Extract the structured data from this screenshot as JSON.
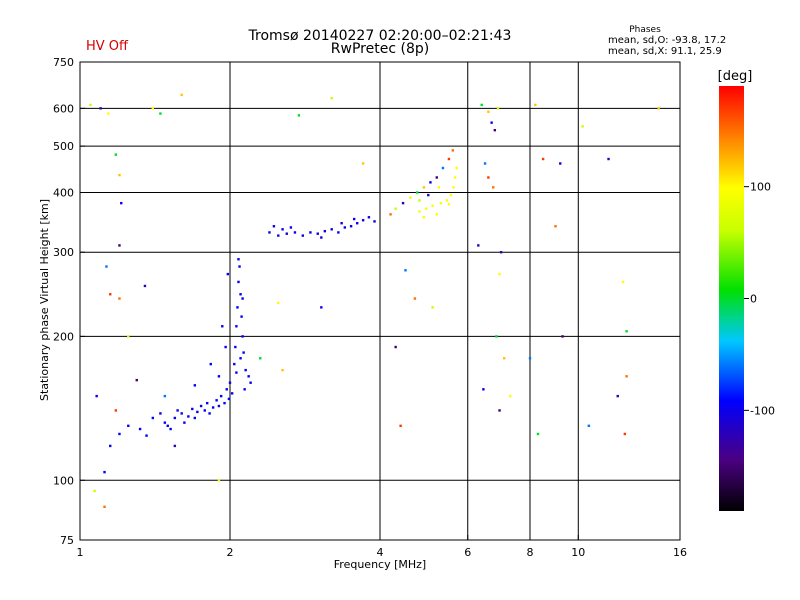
{
  "header": {
    "title_line1": "Tromsø 20140227 02:20:00–02:21:43",
    "title_line2": "RwPretec (8p)",
    "status": "HV Off",
    "phases_title": "Phases",
    "phases_o": "mean, sd,O: -93.8, 17.2",
    "phases_x": "mean, sd,X:  91.1, 25.9",
    "status_color": "#d40000"
  },
  "colorbar": {
    "label": "[deg]",
    "ticks": [
      {
        "value": 100,
        "label": "100"
      },
      {
        "value": 0,
        "label": "0"
      },
      {
        "value": -100,
        "label": "-100"
      }
    ],
    "range": [
      -190,
      190
    ]
  },
  "chart_data": {
    "type": "scatter",
    "title": "Tromsø 20140227 02:20:00–02:21:43",
    "subtitle": "RwPretec (8p)",
    "xlabel": "Frequency [MHz]",
    "ylabel": "Stationary phase Virtual Height [km]",
    "xscale": "log",
    "yscale": "log",
    "xlim": [
      1,
      16
    ],
    "ylim": [
      75,
      750
    ],
    "xticks": [
      {
        "value": 1,
        "label": "1"
      },
      {
        "value": 2,
        "label": "2"
      },
      {
        "value": 4,
        "label": "4"
      },
      {
        "value": 6,
        "label": "6"
      },
      {
        "value": 8,
        "label": "8"
      },
      {
        "value": 10,
        "label": "10"
      },
      {
        "value": 16,
        "label": "16"
      }
    ],
    "yticks": [
      {
        "value": 75,
        "label": "75"
      },
      {
        "value": 100,
        "label": "100"
      },
      {
        "value": 200,
        "label": "200"
      },
      {
        "value": 300,
        "label": "300"
      },
      {
        "value": 400,
        "label": "400"
      },
      {
        "value": 500,
        "label": "500"
      },
      {
        "value": 600,
        "label": "600"
      },
      {
        "value": 750,
        "label": "750"
      }
    ],
    "gridlines_x": [
      2,
      4,
      6,
      8,
      10
    ],
    "gridlines_y": [
      100,
      200,
      300,
      400,
      500,
      600
    ],
    "grid": true,
    "series": [
      {
        "name": "Low-frequency echo trace (blue, phase ~ -100 deg)",
        "phase": -95,
        "points": [
          [
            1.12,
            104
          ],
          [
            1.15,
            118
          ],
          [
            1.2,
            125
          ],
          [
            1.25,
            130
          ],
          [
            1.32,
            128
          ],
          [
            1.36,
            124
          ],
          [
            1.4,
            135
          ],
          [
            1.45,
            138
          ],
          [
            1.48,
            132
          ],
          [
            1.5,
            130
          ],
          [
            1.52,
            128
          ],
          [
            1.55,
            135
          ],
          [
            1.57,
            140
          ],
          [
            1.6,
            138
          ],
          [
            1.62,
            132
          ],
          [
            1.65,
            136
          ],
          [
            1.68,
            141
          ],
          [
            1.7,
            135
          ],
          [
            1.72,
            139
          ],
          [
            1.75,
            143
          ],
          [
            1.78,
            140
          ],
          [
            1.8,
            145
          ],
          [
            1.82,
            138
          ],
          [
            1.85,
            142
          ],
          [
            1.88,
            147
          ],
          [
            1.9,
            143
          ],
          [
            1.92,
            150
          ],
          [
            1.95,
            145
          ],
          [
            1.97,
            155
          ],
          [
            1.99,
            148
          ],
          [
            2.0,
            160
          ],
          [
            2.02,
            152
          ],
          [
            2.04,
            175
          ],
          [
            2.05,
            190
          ],
          [
            2.06,
            210
          ],
          [
            2.07,
            230
          ],
          [
            2.08,
            260
          ],
          [
            2.09,
            280
          ],
          [
            2.1,
            245
          ],
          [
            2.11,
            220
          ],
          [
            2.12,
            200
          ],
          [
            2.13,
            185
          ],
          [
            2.15,
            170
          ],
          [
            2.18,
            165
          ],
          [
            2.1,
            180
          ],
          [
            2.06,
            168
          ],
          [
            1.96,
            190
          ],
          [
            1.93,
            210
          ],
          [
            1.83,
            175
          ],
          [
            1.9,
            165
          ],
          [
            2.12,
            240
          ],
          [
            2.08,
            290
          ],
          [
            1.98,
            270
          ],
          [
            2.14,
            155
          ],
          [
            2.2,
            160
          ],
          [
            1.7,
            158
          ]
        ]
      },
      {
        "name": "E/F1 layer trace 2.4-4 MHz (blue, phase ~ -100 deg)",
        "phase": -100,
        "points": [
          [
            2.4,
            330
          ],
          [
            2.45,
            340
          ],
          [
            2.5,
            325
          ],
          [
            2.55,
            335
          ],
          [
            2.6,
            328
          ],
          [
            2.7,
            330
          ],
          [
            2.8,
            325
          ],
          [
            2.9,
            330
          ],
          [
            3.0,
            328
          ],
          [
            3.1,
            332
          ],
          [
            3.2,
            335
          ],
          [
            3.3,
            330
          ],
          [
            3.4,
            338
          ],
          [
            3.5,
            340
          ],
          [
            3.6,
            345
          ],
          [
            3.7,
            350
          ],
          [
            3.8,
            355
          ],
          [
            3.9,
            348
          ],
          [
            3.05,
            322
          ],
          [
            3.35,
            345
          ],
          [
            3.55,
            352
          ],
          [
            2.65,
            338
          ]
        ]
      },
      {
        "name": "F2 layer trace 4.1-6 MHz (mixed phase)",
        "phase": -60,
        "points": [
          [
            4.2,
            360
          ],
          [
            4.3,
            370
          ],
          [
            4.45,
            380
          ],
          [
            4.6,
            390
          ],
          [
            4.75,
            400
          ],
          [
            4.9,
            410
          ],
          [
            5.05,
            420
          ],
          [
            5.2,
            430
          ],
          [
            5.35,
            450
          ],
          [
            5.5,
            470
          ],
          [
            5.6,
            490
          ],
          [
            4.8,
            385
          ],
          [
            5.0,
            395
          ],
          [
            5.25,
            410
          ]
        ]
      },
      {
        "name": "F2 layer X-mode trace (yellow, phase ~ +100 deg)",
        "phase": 100,
        "points": [
          [
            4.8,
            365
          ],
          [
            4.95,
            370
          ],
          [
            5.1,
            375
          ],
          [
            5.3,
            380
          ],
          [
            5.45,
            385
          ],
          [
            5.55,
            395
          ],
          [
            5.62,
            410
          ],
          [
            5.66,
            430
          ],
          [
            5.7,
            450
          ],
          [
            4.9,
            355
          ],
          [
            5.2,
            360
          ],
          [
            5.5,
            378
          ]
        ]
      },
      {
        "name": "High-frequency scattered echoes (mixed phase)",
        "phase": 60,
        "points": [
          [
            6.4,
            610
          ],
          [
            6.6,
            590
          ],
          [
            6.7,
            560
          ],
          [
            6.8,
            540
          ],
          [
            6.5,
            460
          ],
          [
            6.6,
            430
          ],
          [
            6.75,
            410
          ],
          [
            6.9,
            600
          ],
          [
            7.0,
            300
          ],
          [
            6.95,
            270
          ],
          [
            6.85,
            200
          ],
          [
            7.1,
            180
          ],
          [
            6.45,
            155
          ],
          [
            6.95,
            140
          ],
          [
            8.0,
            180
          ],
          [
            8.5,
            470
          ],
          [
            9.0,
            340
          ],
          [
            10.2,
            550
          ],
          [
            11.5,
            470
          ],
          [
            12.3,
            260
          ],
          [
            12.5,
            205
          ],
          [
            14.5,
            600
          ]
        ]
      },
      {
        "name": "Scattered noise points",
        "phase": 0,
        "points": [
          [
            1.05,
            610
          ],
          [
            1.1,
            600
          ],
          [
            1.14,
            585
          ],
          [
            1.18,
            480
          ],
          [
            1.2,
            435
          ],
          [
            1.21,
            380
          ],
          [
            1.2,
            310
          ],
          [
            1.13,
            280
          ],
          [
            1.15,
            245
          ],
          [
            1.2,
            240
          ],
          [
            1.25,
            200
          ],
          [
            1.35,
            255
          ],
          [
            1.4,
            600
          ],
          [
            1.45,
            585
          ],
          [
            1.6,
            640
          ],
          [
            1.08,
            150
          ],
          [
            1.3,
            162
          ],
          [
            1.48,
            150
          ],
          [
            1.18,
            140
          ],
          [
            1.12,
            88
          ],
          [
            1.07,
            95
          ],
          [
            1.55,
            118
          ],
          [
            1.9,
            100
          ],
          [
            2.75,
            580
          ],
          [
            3.7,
            460
          ],
          [
            3.05,
            230
          ],
          [
            4.3,
            190
          ],
          [
            4.5,
            275
          ],
          [
            4.4,
            130
          ],
          [
            4.7,
            240
          ],
          [
            5.1,
            230
          ],
          [
            6.3,
            310
          ],
          [
            7.3,
            150
          ],
          [
            8.3,
            125
          ],
          [
            8.2,
            610
          ],
          [
            9.2,
            460
          ],
          [
            9.3,
            200
          ],
          [
            10.5,
            130
          ],
          [
            12.4,
            125
          ],
          [
            12.5,
            165
          ],
          [
            3.2,
            630
          ],
          [
            12.0,
            150
          ],
          [
            2.5,
            235
          ],
          [
            2.3,
            180
          ],
          [
            2.55,
            170
          ]
        ]
      }
    ]
  }
}
